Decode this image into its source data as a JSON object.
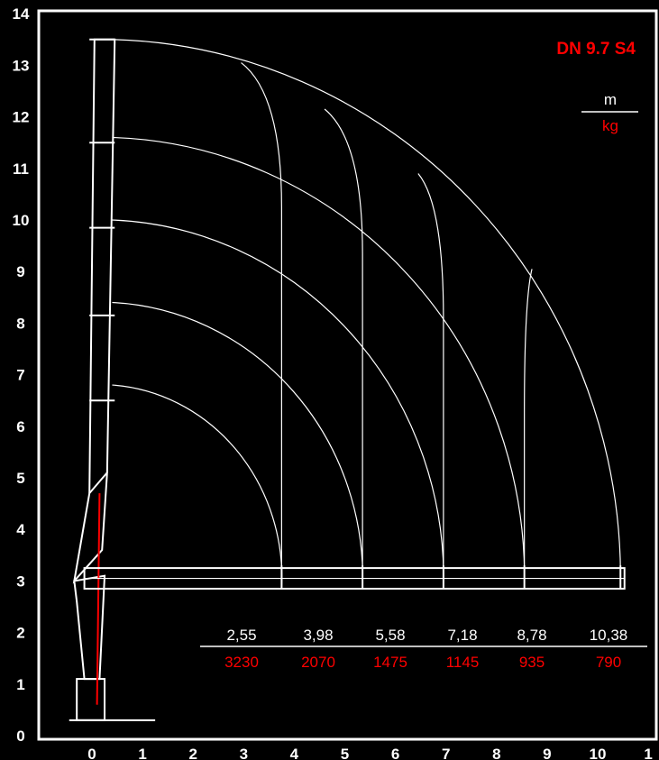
{
  "chart_data": {
    "type": "load-chart",
    "title": "DN 9.7 S4",
    "unit_top": "m",
    "unit_bottom": "kg",
    "x_ticks": [
      "0",
      "1",
      "2",
      "3",
      "4",
      "5",
      "6",
      "7",
      "8",
      "9",
      "10",
      "1"
    ],
    "y_ticks": [
      "0",
      "1",
      "2",
      "3",
      "4",
      "5",
      "6",
      "7",
      "8",
      "9",
      "10",
      "11",
      "12",
      "13",
      "14"
    ],
    "xlim": [
      -0.5,
      11
    ],
    "ylim": [
      0,
      14
    ],
    "pivot": {
      "x": 0.15,
      "y": 3.05
    },
    "boom_height": 3.05,
    "max_reach": 10.38,
    "reach_labels": [
      "2,55",
      "3,98",
      "5,58",
      "7,18",
      "8,78",
      "10,38"
    ],
    "load_labels": [
      "3230",
      "2070",
      "1475",
      "1145",
      "935",
      "790"
    ],
    "reach_values": [
      2.55,
      3.98,
      5.58,
      7.18,
      8.78,
      10.38
    ],
    "load_values": [
      3230,
      2070,
      1475,
      1145,
      935,
      790
    ],
    "inner_arcs_top_y": [
      6.8,
      8.4,
      10.0,
      11.6,
      13.5
    ],
    "extension_marks_x": [
      3.75,
      5.35,
      6.95,
      8.55
    ],
    "extension_marks_top_y": [
      13.05,
      12.15,
      10.9,
      9.05
    ],
    "colors": {
      "background": "#000000",
      "lines": "#ffffff",
      "title": "#ff0000",
      "loads": "#ff0000",
      "frame": "#ffffff"
    }
  }
}
